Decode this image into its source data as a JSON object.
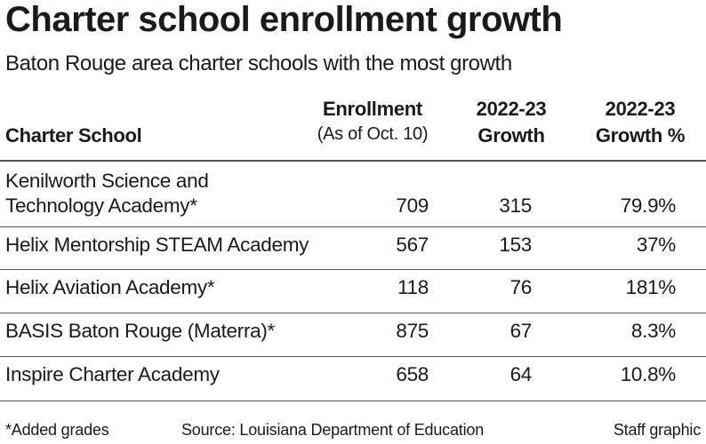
{
  "header": {
    "title": "Charter school enrollment growth",
    "subtitle": "Baton Rouge area charter schools with the most growth"
  },
  "table": {
    "columns": [
      [
        "Charter School"
      ],
      [
        "Enrollment",
        "(As of Oct. 10)"
      ],
      [
        "2022-23",
        "Growth"
      ],
      [
        "2022-23",
        "Growth %"
      ]
    ],
    "rows": [
      [
        "Kenilworth Science and\nTechnology Academy*",
        "709",
        "315",
        "79.9%"
      ],
      [
        "Helix Mentorship STEAM Academy",
        "567",
        "153",
        "37%"
      ],
      [
        "Helix Aviation Academy*",
        "118",
        "76",
        "181%"
      ],
      [
        "BASIS Baton Rouge (Materra)*",
        "875",
        "67",
        "8.3%"
      ],
      [
        "Inspire Charter Academy",
        "658",
        "64",
        "10.8%"
      ]
    ]
  },
  "footer": {
    "note": "*Added grades",
    "source": "Source: Louisiana Department of Education",
    "credit": "Staff graphic"
  }
}
